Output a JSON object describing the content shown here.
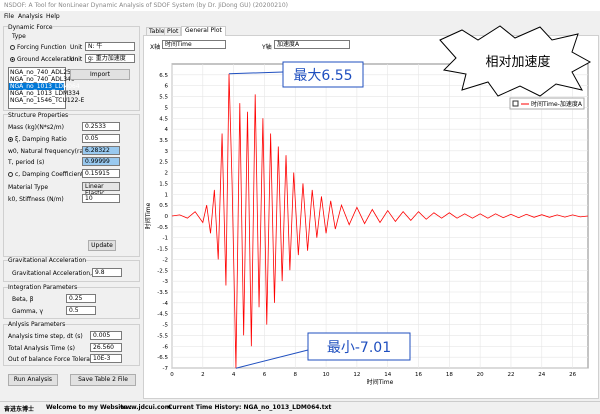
{
  "window": {
    "title": "NSDOF: A Tool for NonLinear Dynamic Analysis of SDOF System (by Dr. JiDong GU) (20200210)",
    "menu": [
      "File",
      "Analysis",
      "Help"
    ]
  },
  "dynamic_force": {
    "title": "Dynamic Force",
    "type_label": "Type",
    "forcing_function": "Forcing Function",
    "ground_acceleration": "Ground Acceleration",
    "unit_label": "Unit",
    "unit_forcing": "N: 牛",
    "unit_ground": "g: 重力加速度",
    "files": [
      "NGA_no_740_ADL250",
      "NGA_no_740_ADL340",
      "NGA_no_1013_LDM064",
      "NGA_no_1013_LDM334",
      "NGA_no_1546_TCU122-E"
    ],
    "import": "Import"
  },
  "structure": {
    "title": "Structure Properties",
    "rows": [
      {
        "label": "Mass (kg)(N*s2/m)",
        "value": "0.2533"
      },
      {
        "label": "ξ, Damping Ratio",
        "value": "0.05"
      },
      {
        "label": "w0, Natural frequency(rad/s)",
        "value": "6.28322"
      },
      {
        "label": "T, period (s)",
        "value": "0.99999"
      },
      {
        "label": "c, Damping Coefficient (N*s/m)",
        "value": "0.15915"
      }
    ],
    "material_label": "Material Type",
    "material": "Linear Elastic",
    "stiffness_label": "k0, Stiffness (N/m)",
    "stiffness": "10",
    "update": "Update"
  },
  "gravity": {
    "title": "Gravitational Acceleration",
    "label": "Gravitational Acceleration, g (m/s2)",
    "value": "9.8"
  },
  "integration": {
    "title": "Integration Parameters",
    "rows": [
      {
        "label": "Beta, β",
        "value": "0.25"
      },
      {
        "label": "Gamma, γ",
        "value": "0.5"
      }
    ]
  },
  "analysis": {
    "title": "Anlysis Parameters",
    "rows": [
      {
        "label": "Analysis time step, dt (s)",
        "value": "0.005"
      },
      {
        "label": "Total Analysis Time (s)",
        "value": "26.560"
      },
      {
        "label": "Out of balance Force Tolerance (N)",
        "value": "10E-3"
      }
    ]
  },
  "buttons": {
    "run": "Run Analysis",
    "save": "Save Table 2 File"
  },
  "tabs": [
    "Table",
    "Plot",
    "General Plot"
  ],
  "axis_select": {
    "x_label": "X轴",
    "x_value": "时间Time",
    "y_label": "Y轴",
    "y_value": "加速度A"
  },
  "status": [
    "奋进东博士",
    "Welcome to my Website :",
    "www.jdcui.com",
    "Current Time History: NGA_no_1013_LDM064.txt"
  ],
  "chart_data": {
    "type": "line",
    "x_label": "时间Time",
    "y_label": "时间Time",
    "grid": true,
    "legend": "upper right",
    "x": [
      0,
      0.5,
      1,
      1.5,
      2,
      2.25,
      2.5,
      2.75,
      3,
      3.25,
      3.5,
      3.7,
      3.9,
      4.15,
      4.4,
      4.65,
      4.9,
      5.15,
      5.4,
      5.65,
      5.9,
      6.15,
      6.4,
      6.65,
      6.9,
      7.15,
      7.4,
      7.65,
      7.9,
      8.2,
      8.5,
      8.8,
      9.1,
      9.4,
      9.7,
      10,
      10.3,
      10.6,
      11,
      11.5,
      12,
      12.5,
      13,
      13.5,
      14,
      14.5,
      15,
      15.5,
      16,
      16.5,
      17,
      17.5,
      18,
      18.5,
      19,
      19.5,
      20,
      20.5,
      21,
      21.5,
      22,
      22.5,
      23,
      23.5,
      24,
      24.5,
      25,
      25.5,
      26,
      26.5,
      27
    ],
    "series": [
      {
        "name": "时间Time-加速度A",
        "color": "#ff0000",
        "values": [
          0,
          0.05,
          -0.1,
          0.2,
          -0.3,
          0.5,
          -0.8,
          1.2,
          -2.0,
          3.8,
          -3.2,
          6.55,
          1.5,
          -7.01,
          5.2,
          -5.5,
          4.8,
          -6.0,
          5.6,
          -4.2,
          4.5,
          -5.0,
          3.8,
          -4.0,
          3.2,
          -3.0,
          2.8,
          -2.5,
          2.0,
          -1.8,
          1.5,
          -1.6,
          1.2,
          -1.0,
          0.9,
          -0.8,
          0.7,
          -0.6,
          0.5,
          -0.4,
          0.4,
          -0.35,
          0.3,
          -0.3,
          0.25,
          -0.25,
          0.2,
          -0.2,
          0.2,
          -0.15,
          0.15,
          -0.1,
          0.15,
          -0.1,
          0.1,
          -0.1,
          0.1,
          -0.1,
          0.1,
          -0.08,
          0.08,
          -0.08,
          0.08,
          -0.06,
          0.06,
          -0.06,
          0.05,
          -0.05,
          0.05,
          -0.04,
          0
        ]
      }
    ],
    "xlim": [
      0,
      27
    ],
    "xticks": [
      0,
      2,
      4,
      6,
      8,
      10,
      12,
      14,
      16,
      18,
      20,
      22,
      24,
      26
    ],
    "ylim": [
      -7,
      7
    ],
    "yticks": [
      -7,
      -6.5,
      -6,
      -5.5,
      -5,
      -4.5,
      -4,
      -3.5,
      -3,
      -2.5,
      -2,
      -1.5,
      -1,
      -0.5,
      0,
      0.5,
      1,
      1.5,
      2,
      2.5,
      3,
      3.5,
      4,
      4.5,
      5,
      5.5,
      6,
      6.5
    ],
    "annotations": {
      "max": "最大6.55",
      "min": "最小-7.01",
      "note": "相对加速度"
    }
  }
}
